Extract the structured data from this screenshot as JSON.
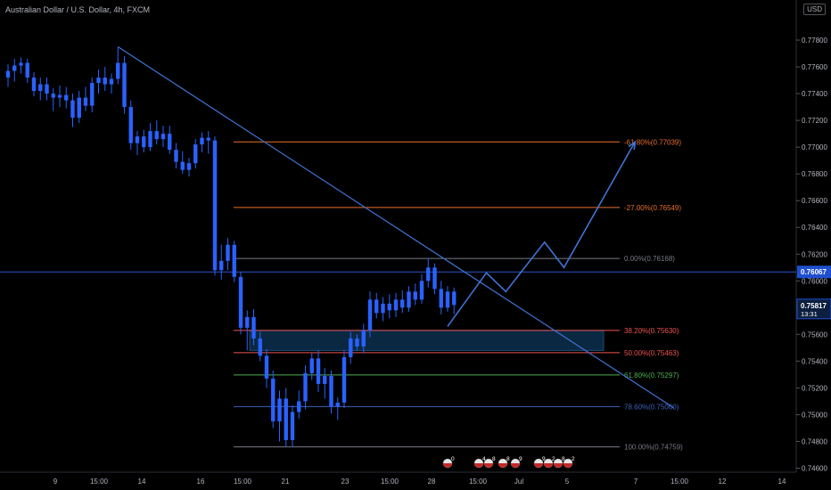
{
  "header": {
    "symbol_title": "Australian Dollar / U.S. Dollar, 4h, FXCM",
    "currency": "USD"
  },
  "colors": {
    "background": "#000000",
    "candle": "#2962ff",
    "trendline": "#3f74d6",
    "projection": "#3f74d6",
    "zone": "#0d2f4d",
    "price_line": "#2a56c6",
    "price_badge": "#1f4fd0",
    "axis_text": "#b2b5be",
    "fib_top": "#e8702a",
    "fib_red": "#ef5350",
    "fib_green": "#4caf50",
    "fib_blue": "#3d63b8",
    "fib_grey": "#787b86"
  },
  "chart_data": {
    "type": "candlestick",
    "title": "Australian Dollar / U.S. Dollar, 4h, FXCM",
    "y_axis": {
      "ticks": [
        "0.77800",
        "0.77600",
        "0.77400",
        "0.77200",
        "0.77000",
        "0.76800",
        "0.76600",
        "0.76400",
        "0.76200",
        "0.76000",
        "0.75800",
        "0.75600",
        "0.75400",
        "0.75200",
        "0.75000",
        "0.74800",
        "0.74600"
      ],
      "range": [
        0.7457,
        0.781
      ]
    },
    "x_axis": {
      "ticks": [
        "9",
        "15:00",
        "14",
        "16",
        "15:00",
        "21",
        "23",
        "15:00",
        "28",
        "15:00",
        "Jul",
        "5",
        "7",
        "15:00",
        "12",
        "14"
      ]
    },
    "candles": [
      {
        "o": 0.7752,
        "h": 0.7762,
        "l": 0.7745,
        "c": 0.7757
      },
      {
        "o": 0.7757,
        "h": 0.7766,
        "l": 0.7749,
        "c": 0.7761
      },
      {
        "o": 0.7761,
        "h": 0.7767,
        "l": 0.7755,
        "c": 0.7763
      },
      {
        "o": 0.7763,
        "h": 0.7766,
        "l": 0.7748,
        "c": 0.7752
      },
      {
        "o": 0.7752,
        "h": 0.7756,
        "l": 0.7738,
        "c": 0.7742
      },
      {
        "o": 0.7742,
        "h": 0.7752,
        "l": 0.7735,
        "c": 0.7747
      },
      {
        "o": 0.7747,
        "h": 0.7752,
        "l": 0.7735,
        "c": 0.774
      },
      {
        "o": 0.774,
        "h": 0.7744,
        "l": 0.7727,
        "c": 0.7737
      },
      {
        "o": 0.7737,
        "h": 0.7746,
        "l": 0.773,
        "c": 0.7739
      },
      {
        "o": 0.7739,
        "h": 0.7745,
        "l": 0.7729,
        "c": 0.7735
      },
      {
        "o": 0.7735,
        "h": 0.774,
        "l": 0.7715,
        "c": 0.7722
      },
      {
        "o": 0.7722,
        "h": 0.7742,
        "l": 0.7718,
        "c": 0.7737
      },
      {
        "o": 0.7737,
        "h": 0.7745,
        "l": 0.7727,
        "c": 0.7731
      },
      {
        "o": 0.7731,
        "h": 0.7752,
        "l": 0.7726,
        "c": 0.7748
      },
      {
        "o": 0.7748,
        "h": 0.7758,
        "l": 0.774,
        "c": 0.7752
      },
      {
        "o": 0.7752,
        "h": 0.776,
        "l": 0.7742,
        "c": 0.7747
      },
      {
        "o": 0.7747,
        "h": 0.7755,
        "l": 0.774,
        "c": 0.7751
      },
      {
        "o": 0.7751,
        "h": 0.7775,
        "l": 0.7747,
        "c": 0.7763
      },
      {
        "o": 0.7763,
        "h": 0.7768,
        "l": 0.7725,
        "c": 0.773
      },
      {
        "o": 0.773,
        "h": 0.7735,
        "l": 0.7698,
        "c": 0.7703
      },
      {
        "o": 0.7703,
        "h": 0.7712,
        "l": 0.7694,
        "c": 0.7708
      },
      {
        "o": 0.7708,
        "h": 0.7713,
        "l": 0.7696,
        "c": 0.77
      },
      {
        "o": 0.77,
        "h": 0.7718,
        "l": 0.7697,
        "c": 0.7712
      },
      {
        "o": 0.7712,
        "h": 0.772,
        "l": 0.7702,
        "c": 0.7706
      },
      {
        "o": 0.7706,
        "h": 0.7716,
        "l": 0.77,
        "c": 0.771
      },
      {
        "o": 0.771,
        "h": 0.7716,
        "l": 0.7695,
        "c": 0.7698
      },
      {
        "o": 0.7698,
        "h": 0.7703,
        "l": 0.7684,
        "c": 0.7689
      },
      {
        "o": 0.7689,
        "h": 0.7697,
        "l": 0.768,
        "c": 0.7683
      },
      {
        "o": 0.7683,
        "h": 0.7692,
        "l": 0.7678,
        "c": 0.7688
      },
      {
        "o": 0.7688,
        "h": 0.7706,
        "l": 0.7684,
        "c": 0.7702
      },
      {
        "o": 0.7702,
        "h": 0.7711,
        "l": 0.7696,
        "c": 0.7707
      },
      {
        "o": 0.7707,
        "h": 0.7712,
        "l": 0.7695,
        "c": 0.7705
      },
      {
        "o": 0.7705,
        "h": 0.7708,
        "l": 0.7604,
        "c": 0.7608
      },
      {
        "o": 0.7608,
        "h": 0.7627,
        "l": 0.7601,
        "c": 0.7615
      },
      {
        "o": 0.7615,
        "h": 0.7632,
        "l": 0.7608,
        "c": 0.7627
      },
      {
        "o": 0.7627,
        "h": 0.763,
        "l": 0.7599,
        "c": 0.7603
      },
      {
        "o": 0.7603,
        "h": 0.7607,
        "l": 0.756,
        "c": 0.7565
      },
      {
        "o": 0.7565,
        "h": 0.7578,
        "l": 0.7548,
        "c": 0.7573
      },
      {
        "o": 0.7573,
        "h": 0.7579,
        "l": 0.7552,
        "c": 0.7557
      },
      {
        "o": 0.7557,
        "h": 0.7562,
        "l": 0.754,
        "c": 0.7544
      },
      {
        "o": 0.7544,
        "h": 0.7549,
        "l": 0.752,
        "c": 0.7527
      },
      {
        "o": 0.7527,
        "h": 0.7533,
        "l": 0.749,
        "c": 0.7495
      },
      {
        "o": 0.7495,
        "h": 0.7518,
        "l": 0.748,
        "c": 0.7512
      },
      {
        "o": 0.7512,
        "h": 0.752,
        "l": 0.7476,
        "c": 0.7481
      },
      {
        "o": 0.7481,
        "h": 0.7507,
        "l": 0.7476,
        "c": 0.7502
      },
      {
        "o": 0.7502,
        "h": 0.7518,
        "l": 0.7497,
        "c": 0.751
      },
      {
        "o": 0.751,
        "h": 0.7537,
        "l": 0.7504,
        "c": 0.7531
      },
      {
        "o": 0.7531,
        "h": 0.7546,
        "l": 0.7526,
        "c": 0.7542
      },
      {
        "o": 0.7542,
        "h": 0.7548,
        "l": 0.7517,
        "c": 0.7523
      },
      {
        "o": 0.7523,
        "h": 0.7535,
        "l": 0.7512,
        "c": 0.7529
      },
      {
        "o": 0.7529,
        "h": 0.7533,
        "l": 0.7501,
        "c": 0.7506
      },
      {
        "o": 0.7506,
        "h": 0.7513,
        "l": 0.7496,
        "c": 0.7509
      },
      {
        "o": 0.7509,
        "h": 0.7548,
        "l": 0.7505,
        "c": 0.7543
      },
      {
        "o": 0.7543,
        "h": 0.7562,
        "l": 0.7538,
        "c": 0.7557
      },
      {
        "o": 0.7557,
        "h": 0.756,
        "l": 0.7548,
        "c": 0.7551
      },
      {
        "o": 0.7551,
        "h": 0.7568,
        "l": 0.7546,
        "c": 0.7563
      },
      {
        "o": 0.7563,
        "h": 0.7592,
        "l": 0.7558,
        "c": 0.7586
      },
      {
        "o": 0.7586,
        "h": 0.7591,
        "l": 0.7572,
        "c": 0.7576
      },
      {
        "o": 0.7576,
        "h": 0.7588,
        "l": 0.757,
        "c": 0.7583
      },
      {
        "o": 0.7583,
        "h": 0.759,
        "l": 0.7572,
        "c": 0.7578
      },
      {
        "o": 0.7578,
        "h": 0.7591,
        "l": 0.7573,
        "c": 0.7586
      },
      {
        "o": 0.7586,
        "h": 0.7593,
        "l": 0.7576,
        "c": 0.758
      },
      {
        "o": 0.758,
        "h": 0.7596,
        "l": 0.7577,
        "c": 0.7592
      },
      {
        "o": 0.7592,
        "h": 0.7598,
        "l": 0.7582,
        "c": 0.7586
      },
      {
        "o": 0.7586,
        "h": 0.7605,
        "l": 0.7583,
        "c": 0.76
      },
      {
        "o": 0.76,
        "h": 0.7617,
        "l": 0.7595,
        "c": 0.761
      },
      {
        "o": 0.761,
        "h": 0.7613,
        "l": 0.759,
        "c": 0.7594
      },
      {
        "o": 0.7594,
        "h": 0.76,
        "l": 0.7575,
        "c": 0.758
      },
      {
        "o": 0.758,
        "h": 0.7596,
        "l": 0.7577,
        "c": 0.7592
      },
      {
        "o": 0.7592,
        "h": 0.7595,
        "l": 0.7575,
        "c": 0.7582
      }
    ],
    "price_lines": [
      {
        "value": 0.76067,
        "label": "0.76067"
      },
      {
        "value": 0.75817,
        "label": "0.75817",
        "sublabel": "13:31"
      }
    ],
    "fibonacci": [
      {
        "label": "-61.80%(0.77039)",
        "value": 0.77039,
        "color": "#e8702a"
      },
      {
        "label": "-27.00%(0.76549)",
        "value": 0.76549,
        "color": "#e8702a"
      },
      {
        "label": "0.00%(0.76168)",
        "value": 0.76168,
        "color": "#787b86"
      },
      {
        "label": "38.20%(0.75630)",
        "value": 0.7563,
        "color": "#ef5350"
      },
      {
        "label": "50.00%(0.75463)",
        "value": 0.75463,
        "color": "#ef5350"
      },
      {
        "label": "61.80%(0.75297)",
        "value": 0.75297,
        "color": "#4caf50"
      },
      {
        "label": "78.60%(0.75060)",
        "value": 0.7506,
        "color": "#3d63b8"
      },
      {
        "label": "100.00%(0.74759)",
        "value": 0.74759,
        "color": "#787b86"
      }
    ],
    "zone": {
      "top": 0.7563,
      "bottom": 0.7548
    },
    "trendline": [
      {
        "x": 17,
        "y": 0.7775
      },
      {
        "x": 103,
        "y": 0.7505
      }
    ],
    "projection_path": [
      {
        "x": 68,
        "y": 0.7566
      },
      {
        "x": 74,
        "y": 0.7606
      },
      {
        "x": 77,
        "y": 0.7592
      },
      {
        "x": 83,
        "y": 0.7629
      },
      {
        "x": 86,
        "y": 0.761
      },
      {
        "x": 97,
        "y": 0.7704
      }
    ],
    "events": [
      {
        "label": "0"
      },
      {
        "label": "4"
      },
      {
        "label": "8"
      },
      {
        "label": "8"
      },
      {
        "label": "9"
      },
      {
        "label": "9"
      },
      {
        "label": "2"
      },
      {
        "label": "8"
      },
      {
        "label": "2"
      }
    ]
  }
}
